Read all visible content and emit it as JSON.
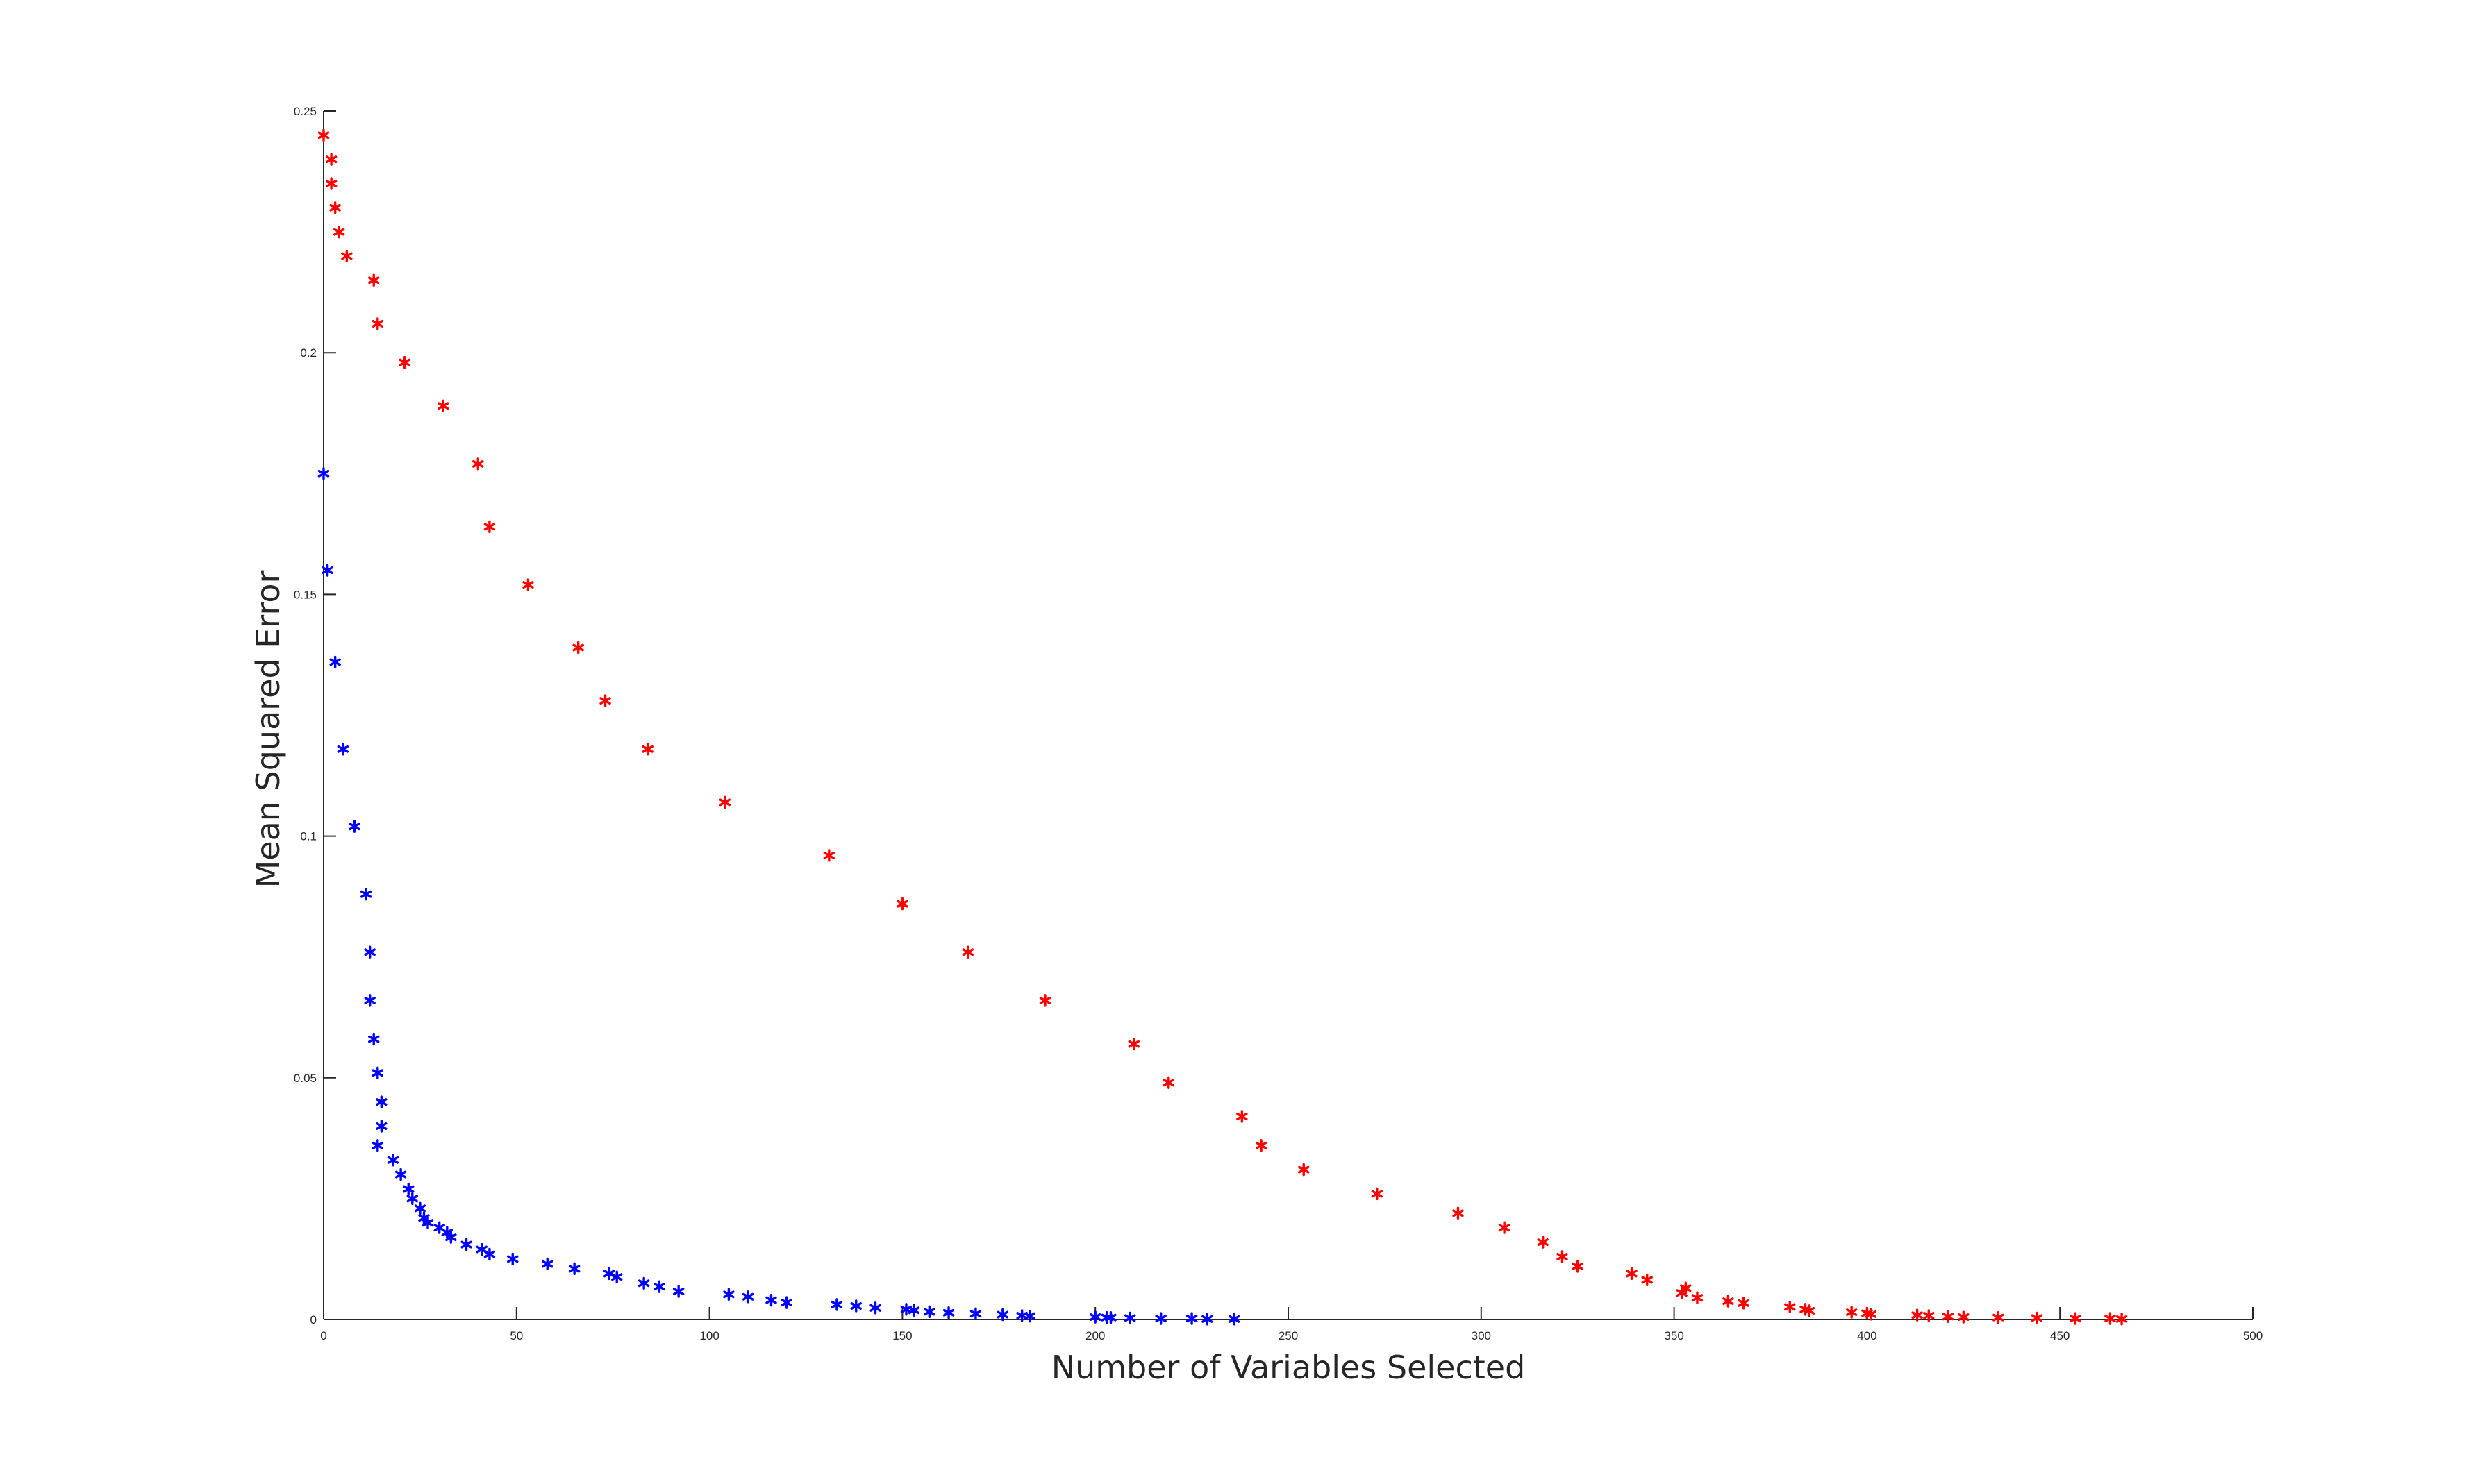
{
  "chart_data": {
    "type": "scatter",
    "title": "",
    "xlabel": "Number of Variables Selected",
    "ylabel": "Mean Squared Error",
    "xlim": [
      0,
      500
    ],
    "ylim": [
      0,
      0.25
    ],
    "xticks": [
      0,
      50,
      100,
      150,
      200,
      250,
      300,
      350,
      400,
      450,
      500
    ],
    "xtick_labels": [
      "0",
      "50",
      "100",
      "150",
      "200",
      "250",
      "300",
      "350",
      "400",
      "450",
      "500"
    ],
    "yticks": [
      0,
      0.05,
      0.1,
      0.15,
      0.2,
      0.25
    ],
    "ytick_labels": [
      "0",
      "0.05",
      "0.1",
      "0.15",
      "0.2",
      "0.25"
    ],
    "grid": false,
    "marker": "asterisk",
    "series": [
      {
        "color": "#ff0000",
        "points": [
          [
            0,
            0.245
          ],
          [
            2,
            0.24
          ],
          [
            2,
            0.235
          ],
          [
            3,
            0.23
          ],
          [
            4,
            0.225
          ],
          [
            6,
            0.22
          ],
          [
            13,
            0.215
          ],
          [
            14,
            0.206
          ],
          [
            21,
            0.198
          ],
          [
            31,
            0.189
          ],
          [
            40,
            0.177
          ],
          [
            43,
            0.164
          ],
          [
            53,
            0.152
          ],
          [
            66,
            0.139
          ],
          [
            73,
            0.128
          ],
          [
            84,
            0.118
          ],
          [
            104,
            0.107
          ],
          [
            131,
            0.096
          ],
          [
            150,
            0.086
          ],
          [
            167,
            0.076
          ],
          [
            187,
            0.066
          ],
          [
            210,
            0.057
          ],
          [
            219,
            0.049
          ],
          [
            238,
            0.042
          ],
          [
            243,
            0.036
          ],
          [
            254,
            0.031
          ],
          [
            273,
            0.026
          ],
          [
            294,
            0.022
          ],
          [
            306,
            0.019
          ],
          [
            316,
            0.016
          ],
          [
            321,
            0.013
          ],
          [
            325,
            0.011
          ],
          [
            339,
            0.0095
          ],
          [
            343,
            0.0082
          ],
          [
            353,
            0.0065
          ],
          [
            352,
            0.0055
          ],
          [
            356,
            0.0045
          ],
          [
            364,
            0.0038
          ],
          [
            368,
            0.0034
          ],
          [
            380,
            0.0026
          ],
          [
            384,
            0.0021
          ],
          [
            385,
            0.0018
          ],
          [
            396,
            0.0015
          ],
          [
            400,
            0.0013
          ],
          [
            401,
            0.0011
          ],
          [
            413,
            0.0009
          ],
          [
            416,
            0.0008
          ],
          [
            421,
            0.0006
          ],
          [
            425,
            0.0005
          ],
          [
            434,
            0.0004
          ],
          [
            444,
            0.0003
          ],
          [
            454,
            0.0002
          ],
          [
            463,
            0.0002
          ],
          [
            466,
            0.0001
          ]
        ]
      },
      {
        "color": "#0000ff",
        "points": [
          [
            0,
            0.175
          ],
          [
            1,
            0.155
          ],
          [
            3,
            0.136
          ],
          [
            5,
            0.118
          ],
          [
            8,
            0.102
          ],
          [
            11,
            0.088
          ],
          [
            12,
            0.076
          ],
          [
            12,
            0.066
          ],
          [
            13,
            0.058
          ],
          [
            14,
            0.051
          ],
          [
            15,
            0.045
          ],
          [
            15,
            0.04
          ],
          [
            14,
            0.036
          ],
          [
            18,
            0.033
          ],
          [
            20,
            0.03
          ],
          [
            22,
            0.027
          ],
          [
            23,
            0.025
          ],
          [
            25,
            0.023
          ],
          [
            26,
            0.021
          ],
          [
            27,
            0.02
          ],
          [
            30,
            0.019
          ],
          [
            32,
            0.018
          ],
          [
            33,
            0.017
          ],
          [
            37,
            0.0155
          ],
          [
            41,
            0.0145
          ],
          [
            43,
            0.0135
          ],
          [
            49,
            0.0125
          ],
          [
            58,
            0.0115
          ],
          [
            65,
            0.0105
          ],
          [
            74,
            0.0095
          ],
          [
            76,
            0.0088
          ],
          [
            83,
            0.0075
          ],
          [
            87,
            0.0068
          ],
          [
            92,
            0.0058
          ],
          [
            105,
            0.0052
          ],
          [
            110,
            0.0047
          ],
          [
            116,
            0.004
          ],
          [
            120,
            0.0035
          ],
          [
            133,
            0.0031
          ],
          [
            138,
            0.0028
          ],
          [
            143,
            0.0024
          ],
          [
            151,
            0.0021
          ],
          [
            153,
            0.0019
          ],
          [
            157,
            0.0016
          ],
          [
            162,
            0.0014
          ],
          [
            169,
            0.0012
          ],
          [
            176,
            0.001
          ],
          [
            181,
            0.0008
          ],
          [
            183,
            0.0007
          ],
          [
            200,
            0.0005
          ],
          [
            203,
            0.0004
          ],
          [
            204,
            0.0004
          ],
          [
            209,
            0.0003
          ],
          [
            217,
            0.0002
          ],
          [
            225,
            0.0002
          ],
          [
            229,
            0.0001
          ],
          [
            236,
            0.0001
          ]
        ]
      }
    ]
  }
}
